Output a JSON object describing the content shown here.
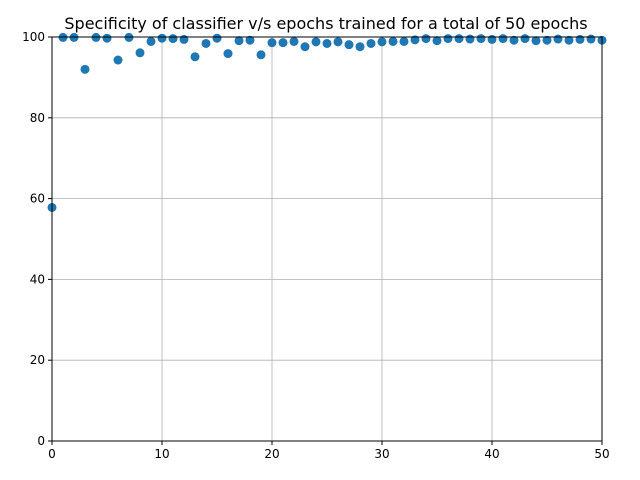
{
  "chart_data": {
    "type": "scatter",
    "title": "Specificity of classifier v/s epochs trained for a total of 50 epochs",
    "xlabel": "",
    "ylabel": "",
    "xlim": [
      0,
      50
    ],
    "ylim": [
      0,
      100
    ],
    "x_ticks": [
      "0",
      "10",
      "20",
      "30",
      "40",
      "50"
    ],
    "y_ticks": [
      "0",
      "20",
      "40",
      "60",
      "80",
      "100"
    ],
    "grid": true,
    "marker_color": "#1f77b4",
    "x": [
      0,
      1,
      2,
      3,
      4,
      5,
      6,
      7,
      8,
      9,
      10,
      11,
      12,
      13,
      14,
      15,
      16,
      17,
      18,
      19,
      20,
      21,
      22,
      23,
      24,
      25,
      26,
      27,
      28,
      29,
      30,
      31,
      32,
      33,
      34,
      35,
      36,
      37,
      38,
      39,
      40,
      41,
      42,
      43,
      44,
      45,
      46,
      47,
      48,
      49,
      50
    ],
    "y": [
      57.8,
      99.9,
      99.9,
      92.0,
      99.9,
      99.7,
      94.3,
      99.9,
      96.1,
      98.9,
      99.7,
      99.6,
      99.4,
      95.1,
      98.4,
      99.7,
      95.9,
      99.1,
      99.2,
      95.6,
      98.6,
      98.6,
      98.9,
      97.6,
      98.8,
      98.4,
      98.8,
      98.1,
      97.6,
      98.4,
      98.8,
      98.9,
      98.9,
      99.3,
      99.6,
      99.1,
      99.6,
      99.6,
      99.5,
      99.6,
      99.4,
      99.6,
      99.2,
      99.6,
      99.1,
      99.2,
      99.5,
      99.2,
      99.4,
      99.5,
      99.2
    ]
  }
}
